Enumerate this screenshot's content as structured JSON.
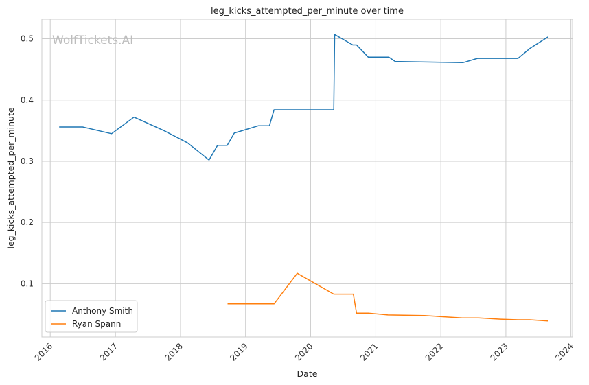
{
  "chart_data": {
    "type": "line",
    "title": "leg_kicks_attempted_per_minute over time",
    "xlabel": "Date",
    "ylabel": "leg_kicks_attempted_per_minute",
    "watermark": "WolfTickets.AI",
    "xlim": [
      "2015-11-15",
      "2024-01-10"
    ],
    "ylim": [
      0.013,
      0.532
    ],
    "x_ticks": [
      "2016",
      "2017",
      "2018",
      "2019",
      "2020",
      "2021",
      "2022",
      "2023",
      "2024"
    ],
    "y_ticks": [
      "0.1",
      "0.2",
      "0.3",
      "0.4",
      "0.5"
    ],
    "grid": true,
    "legend_position": "bottom-left",
    "series": [
      {
        "name": "Anthony Smith",
        "color": "#1f77b4",
        "points": [
          [
            "2016-02-20",
            0.356
          ],
          [
            "2016-07-01",
            0.356
          ],
          [
            "2016-12-10",
            0.345
          ],
          [
            "2017-04-15",
            0.372
          ],
          [
            "2017-10-01",
            0.35
          ],
          [
            "2018-02-10",
            0.33
          ],
          [
            "2018-06-10",
            0.302
          ],
          [
            "2018-07-28",
            0.326
          ],
          [
            "2018-09-20",
            0.326
          ],
          [
            "2018-10-30",
            0.346
          ],
          [
            "2019-03-15",
            0.358
          ],
          [
            "2019-05-15",
            0.358
          ],
          [
            "2019-06-10",
            0.384
          ],
          [
            "2020-05-10",
            0.384
          ],
          [
            "2020-05-15",
            0.507
          ],
          [
            "2020-08-25",
            0.49
          ],
          [
            "2020-09-15",
            0.49
          ],
          [
            "2020-11-20",
            0.47
          ],
          [
            "2021-03-15",
            0.47
          ],
          [
            "2021-04-20",
            0.463
          ],
          [
            "2022-05-05",
            0.461
          ],
          [
            "2022-07-25",
            0.468
          ],
          [
            "2023-03-10",
            0.468
          ],
          [
            "2023-05-15",
            0.484
          ],
          [
            "2023-08-25",
            0.503
          ]
        ]
      },
      {
        "name": "Ryan Spann",
        "color": "#ff7f0e",
        "points": [
          [
            "2018-09-22",
            0.067
          ],
          [
            "2019-06-10",
            0.067
          ],
          [
            "2019-10-18",
            0.117
          ],
          [
            "2020-05-10",
            0.083
          ],
          [
            "2020-08-28",
            0.083
          ],
          [
            "2020-09-15",
            0.052
          ],
          [
            "2020-11-20",
            0.052
          ],
          [
            "2021-03-10",
            0.049
          ],
          [
            "2021-10-01",
            0.048
          ],
          [
            "2022-05-01",
            0.044
          ],
          [
            "2022-08-01",
            0.044
          ],
          [
            "2022-12-01",
            0.042
          ],
          [
            "2023-03-10",
            0.041
          ],
          [
            "2023-05-15",
            0.041
          ],
          [
            "2023-08-25",
            0.039
          ]
        ]
      }
    ]
  }
}
